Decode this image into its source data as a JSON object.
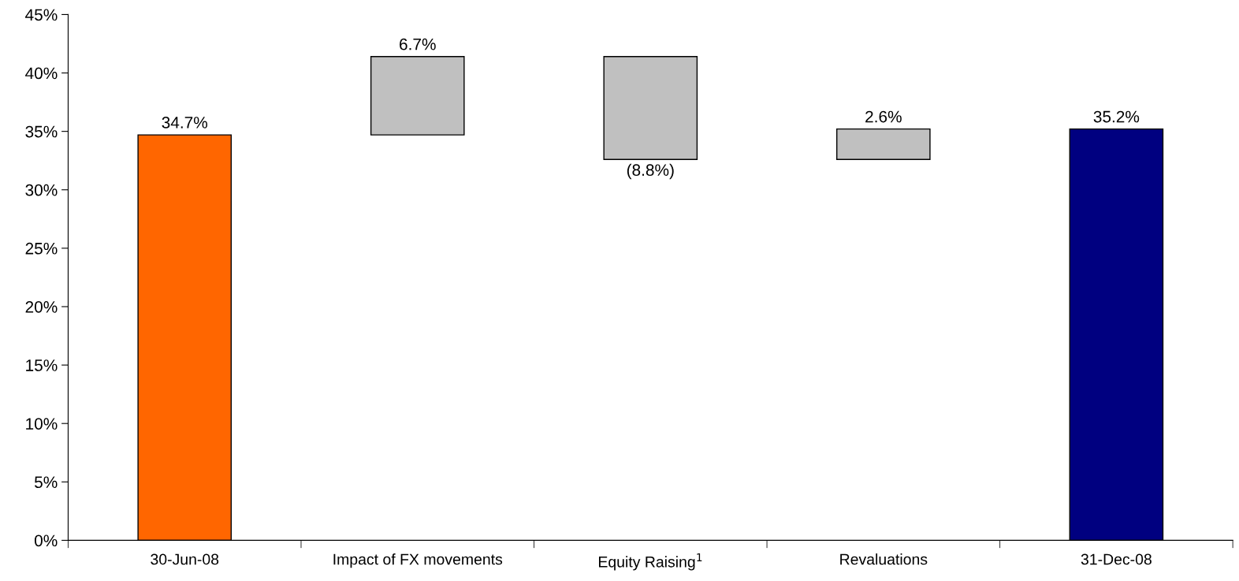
{
  "chart_data": {
    "type": "bar",
    "categories": [
      "30-Jun-08",
      "Impact of FX movements",
      "Equity Raising$^{1}$",
      "Revaluations",
      "31-Dec-08"
    ],
    "values": [
      34.7,
      6.7,
      -8.8,
      2.6,
      35.2
    ],
    "base": [
      0,
      34.7,
      41.4,
      32.6,
      0
    ],
    "colors": [
      "#ff6600",
      "#c0c0c0",
      "#c0c0c0",
      "#c0c0c0",
      "#000080"
    ],
    "value_labels": [
      "34.7%",
      "6.7%",
      "(8.8%)",
      "2.6%",
      "35.2%"
    ],
    "ylim": [
      0,
      45
    ],
    "yticks": [
      {
        "value": 0,
        "label": "0%"
      },
      {
        "value": 5,
        "label": "5%"
      },
      {
        "value": 10,
        "label": "10%"
      },
      {
        "value": 15,
        "label": "15%"
      },
      {
        "value": 20,
        "label": "20%"
      },
      {
        "value": 25,
        "label": "25%"
      },
      {
        "value": 30,
        "label": "30%"
      },
      {
        "value": 35,
        "label": "35%"
      },
      {
        "value": 40,
        "label": "40%"
      },
      {
        "value": 45,
        "label": "45%"
      }
    ],
    "grid": false
  }
}
